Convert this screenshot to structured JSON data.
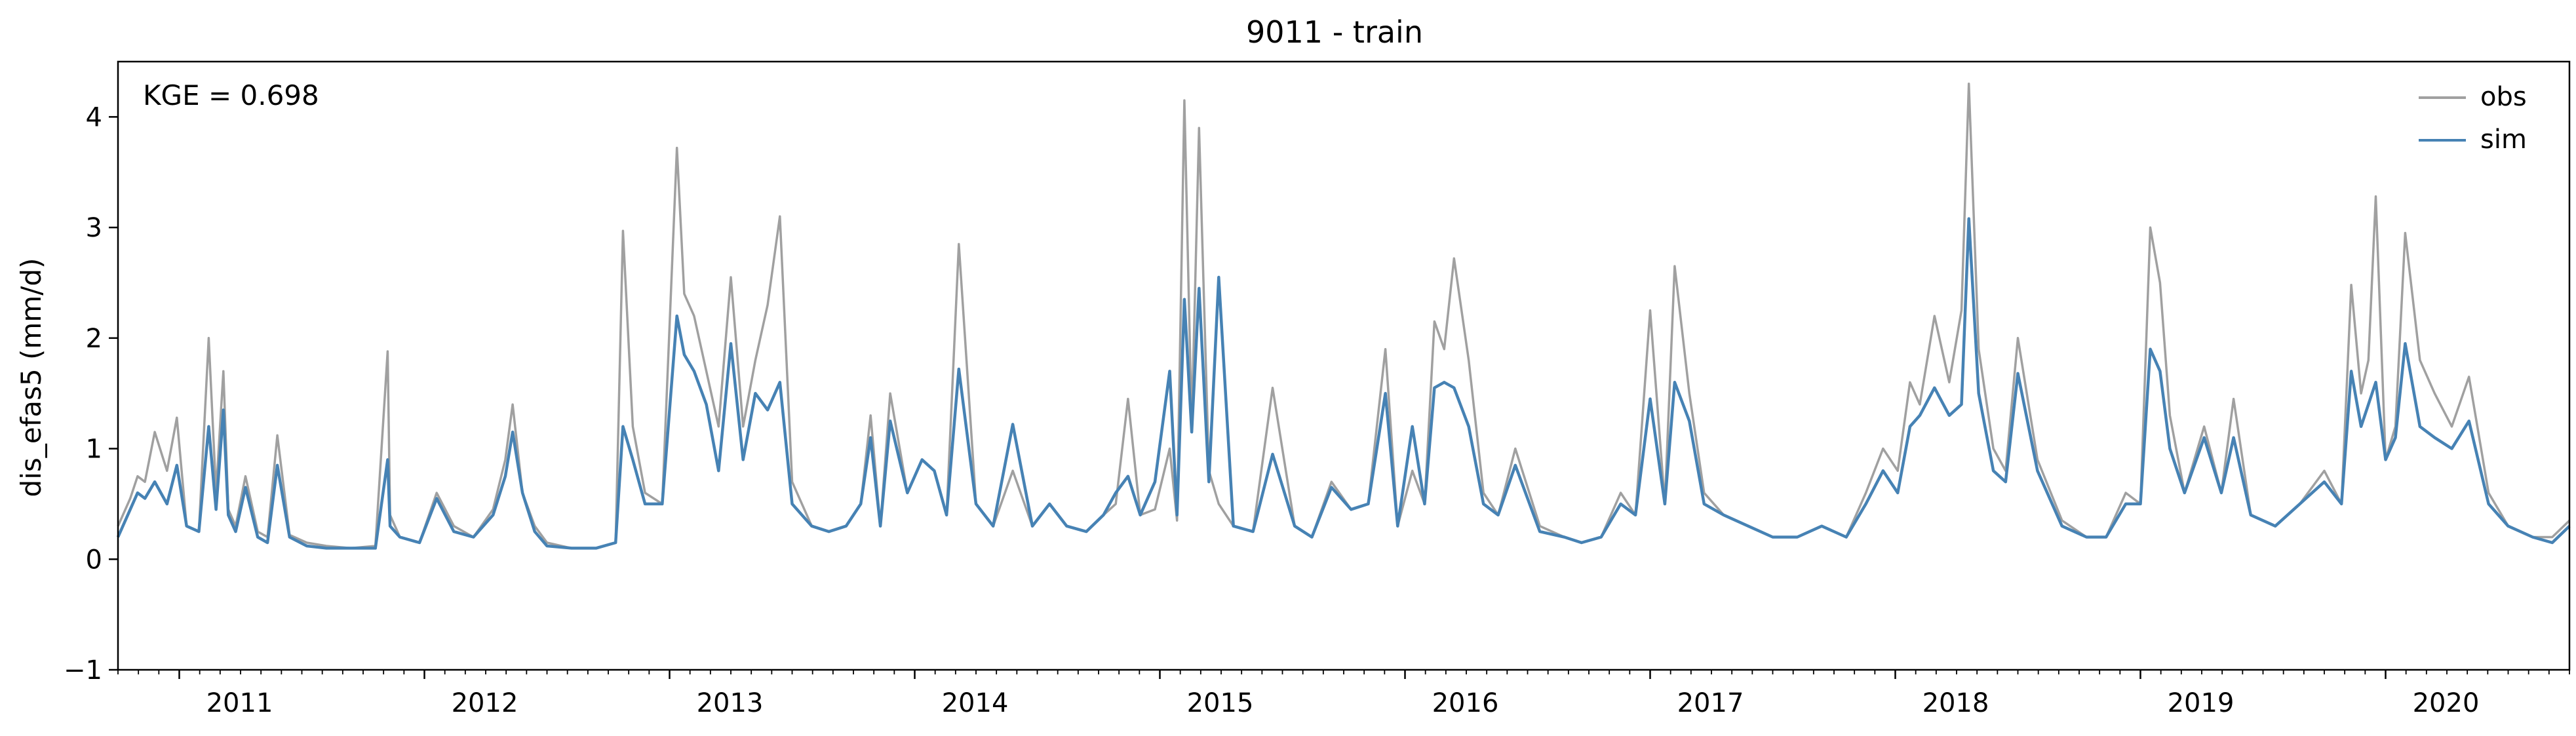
{
  "chart_data": {
    "type": "line",
    "title": "9011 - train",
    "xlabel": "",
    "ylabel": "dis_efas5 (mm/d)",
    "annotation": "KGE = 0.698",
    "xlim": [
      2010.75,
      2020.75
    ],
    "ylim": [
      -1,
      4.5
    ],
    "yticks": [
      -1,
      0,
      1,
      2,
      3,
      4
    ],
    "ytick_labels": [
      "−1",
      "0",
      "1",
      "2",
      "3",
      "4"
    ],
    "xticks": [
      2011,
      2012,
      2013,
      2014,
      2015,
      2016,
      2017,
      2018,
      2019,
      2020
    ],
    "xtick_labels": [
      "2011",
      "2012",
      "2013",
      "2014",
      "2015",
      "2016",
      "2017",
      "2018",
      "2019",
      "2020"
    ],
    "legend_position": "top-right",
    "grid": false,
    "series": [
      {
        "name": "obs",
        "color": "#a0a0a0",
        "x": [
          2010.75,
          2010.8,
          2010.83,
          2010.86,
          2010.9,
          2010.95,
          2010.99,
          2011.03,
          2011.08,
          2011.12,
          2011.15,
          2011.18,
          2011.2,
          2011.23,
          2011.27,
          2011.32,
          2011.36,
          2011.4,
          2011.45,
          2011.52,
          2011.6,
          2011.7,
          2011.8,
          2011.85,
          2011.86,
          2011.9,
          2011.98,
          2012.05,
          2012.12,
          2012.2,
          2012.28,
          2012.33,
          2012.36,
          2012.4,
          2012.45,
          2012.5,
          2012.6,
          2012.7,
          2012.78,
          2012.81,
          2012.85,
          2012.9,
          2012.97,
          2013.03,
          2013.06,
          2013.1,
          2013.15,
          2013.2,
          2013.25,
          2013.3,
          2013.35,
          2013.4,
          2013.45,
          2013.5,
          2013.58,
          2013.65,
          2013.72,
          2013.78,
          2013.82,
          2013.86,
          2013.9,
          2013.97,
          2014.03,
          2014.08,
          2014.13,
          2014.18,
          2014.25,
          2014.32,
          2014.4,
          2014.48,
          2014.55,
          2014.62,
          2014.7,
          2014.77,
          2014.82,
          2014.87,
          2014.92,
          2014.98,
          2015.04,
          2015.07,
          2015.1,
          2015.13,
          2015.16,
          2015.2,
          2015.24,
          2015.3,
          2015.38,
          2015.46,
          2015.55,
          2015.62,
          2015.7,
          2015.78,
          2015.85,
          2015.92,
          2015.97,
          2016.03,
          2016.08,
          2016.12,
          2016.16,
          2016.2,
          2016.26,
          2016.32,
          2016.38,
          2016.45,
          2016.55,
          2016.65,
          2016.72,
          2016.8,
          2016.88,
          2016.94,
          2017.0,
          2017.06,
          2017.1,
          2017.16,
          2017.22,
          2017.3,
          2017.4,
          2017.5,
          2017.6,
          2017.7,
          2017.8,
          2017.88,
          2017.95,
          2018.01,
          2018.06,
          2018.1,
          2018.16,
          2018.22,
          2018.27,
          2018.3,
          2018.34,
          2018.4,
          2018.45,
          2018.5,
          2018.58,
          2018.68,
          2018.78,
          2018.86,
          2018.94,
          2019.0,
          2019.04,
          2019.08,
          2019.12,
          2019.18,
          2019.26,
          2019.33,
          2019.38,
          2019.45,
          2019.55,
          2019.65,
          2019.75,
          2019.82,
          2019.86,
          2019.9,
          2019.93,
          2019.96,
          2020.0,
          2020.04,
          2020.08,
          2020.14,
          2020.2,
          2020.27,
          2020.34,
          2020.42,
          2020.5,
          2020.6,
          2020.68,
          2020.75
        ],
        "y": [
          0.3,
          0.55,
          0.75,
          0.7,
          1.15,
          0.8,
          1.28,
          0.3,
          0.25,
          2.0,
          0.6,
          1.7,
          0.45,
          0.3,
          0.75,
          0.25,
          0.2,
          1.12,
          0.22,
          0.15,
          0.12,
          0.1,
          0.12,
          1.88,
          0.4,
          0.2,
          0.15,
          0.6,
          0.3,
          0.2,
          0.45,
          0.9,
          1.4,
          0.6,
          0.3,
          0.15,
          0.1,
          0.1,
          0.15,
          2.97,
          1.2,
          0.6,
          0.5,
          3.72,
          2.4,
          2.2,
          1.7,
          1.2,
          2.55,
          1.2,
          1.8,
          2.3,
          3.1,
          0.7,
          0.3,
          0.25,
          0.3,
          0.5,
          1.3,
          0.3,
          1.5,
          0.6,
          0.9,
          0.8,
          0.4,
          2.85,
          0.5,
          0.3,
          0.8,
          0.3,
          0.5,
          0.3,
          0.25,
          0.4,
          0.5,
          1.45,
          0.4,
          0.45,
          1.0,
          0.35,
          4.15,
          1.2,
          3.9,
          0.8,
          0.5,
          0.3,
          0.25,
          1.55,
          0.3,
          0.2,
          0.7,
          0.45,
          0.5,
          1.9,
          0.3,
          0.8,
          0.5,
          2.15,
          1.9,
          2.72,
          1.8,
          0.6,
          0.4,
          1.0,
          0.3,
          0.2,
          0.15,
          0.2,
          0.6,
          0.4,
          2.25,
          0.5,
          2.65,
          1.5,
          0.6,
          0.4,
          0.3,
          0.2,
          0.2,
          0.3,
          0.2,
          0.6,
          1.0,
          0.8,
          1.6,
          1.4,
          2.2,
          1.6,
          2.25,
          4.3,
          1.9,
          1.0,
          0.8,
          2.0,
          0.9,
          0.35,
          0.2,
          0.2,
          0.6,
          0.5,
          3.0,
          2.5,
          1.3,
          0.6,
          1.2,
          0.6,
          1.45,
          0.4,
          0.3,
          0.5,
          0.8,
          0.5,
          2.48,
          1.5,
          1.8,
          3.28,
          0.9,
          1.2,
          2.95,
          1.8,
          1.5,
          1.2,
          1.65,
          0.6,
          0.3,
          0.2,
          0.2,
          0.35
        ]
      },
      {
        "name": "sim",
        "color": "#4682b4",
        "x": [
          2010.75,
          2010.8,
          2010.83,
          2010.86,
          2010.9,
          2010.95,
          2010.99,
          2011.03,
          2011.08,
          2011.12,
          2011.15,
          2011.18,
          2011.2,
          2011.23,
          2011.27,
          2011.32,
          2011.36,
          2011.4,
          2011.45,
          2011.52,
          2011.6,
          2011.7,
          2011.8,
          2011.85,
          2011.86,
          2011.9,
          2011.98,
          2012.05,
          2012.12,
          2012.2,
          2012.28,
          2012.33,
          2012.36,
          2012.4,
          2012.45,
          2012.5,
          2012.6,
          2012.7,
          2012.78,
          2012.81,
          2012.85,
          2012.9,
          2012.97,
          2013.03,
          2013.06,
          2013.1,
          2013.15,
          2013.2,
          2013.25,
          2013.3,
          2013.35,
          2013.4,
          2013.45,
          2013.5,
          2013.58,
          2013.65,
          2013.72,
          2013.78,
          2013.82,
          2013.86,
          2013.9,
          2013.97,
          2014.03,
          2014.08,
          2014.13,
          2014.18,
          2014.25,
          2014.32,
          2014.4,
          2014.48,
          2014.55,
          2014.62,
          2014.7,
          2014.77,
          2014.82,
          2014.87,
          2014.92,
          2014.98,
          2015.04,
          2015.07,
          2015.1,
          2015.13,
          2015.16,
          2015.2,
          2015.24,
          2015.3,
          2015.38,
          2015.46,
          2015.55,
          2015.62,
          2015.7,
          2015.78,
          2015.85,
          2015.92,
          2015.97,
          2016.03,
          2016.08,
          2016.12,
          2016.16,
          2016.2,
          2016.26,
          2016.32,
          2016.38,
          2016.45,
          2016.55,
          2016.65,
          2016.72,
          2016.8,
          2016.88,
          2016.94,
          2017.0,
          2017.06,
          2017.1,
          2017.16,
          2017.22,
          2017.3,
          2017.4,
          2017.5,
          2017.6,
          2017.7,
          2017.8,
          2017.88,
          2017.95,
          2018.01,
          2018.06,
          2018.1,
          2018.16,
          2018.22,
          2018.27,
          2018.3,
          2018.34,
          2018.4,
          2018.45,
          2018.5,
          2018.58,
          2018.68,
          2018.78,
          2018.86,
          2018.94,
          2019.0,
          2019.04,
          2019.08,
          2019.12,
          2019.18,
          2019.26,
          2019.33,
          2019.38,
          2019.45,
          2019.55,
          2019.65,
          2019.75,
          2019.82,
          2019.86,
          2019.9,
          2019.93,
          2019.96,
          2020.0,
          2020.04,
          2020.08,
          2020.14,
          2020.2,
          2020.27,
          2020.34,
          2020.42,
          2020.5,
          2020.6,
          2020.68,
          2020.75
        ],
        "y": [
          0.2,
          0.45,
          0.6,
          0.55,
          0.7,
          0.5,
          0.85,
          0.3,
          0.25,
          1.2,
          0.45,
          1.35,
          0.4,
          0.25,
          0.65,
          0.2,
          0.15,
          0.85,
          0.2,
          0.12,
          0.1,
          0.1,
          0.1,
          0.9,
          0.3,
          0.2,
          0.15,
          0.55,
          0.25,
          0.2,
          0.4,
          0.75,
          1.15,
          0.6,
          0.25,
          0.12,
          0.1,
          0.1,
          0.15,
          1.2,
          0.9,
          0.5,
          0.5,
          2.2,
          1.85,
          1.7,
          1.4,
          0.8,
          1.95,
          0.9,
          1.5,
          1.35,
          1.6,
          0.5,
          0.3,
          0.25,
          0.3,
          0.5,
          1.1,
          0.3,
          1.25,
          0.6,
          0.9,
          0.8,
          0.4,
          1.72,
          0.5,
          0.3,
          1.22,
          0.3,
          0.5,
          0.3,
          0.25,
          0.4,
          0.6,
          0.75,
          0.4,
          0.7,
          1.7,
          0.4,
          2.35,
          1.15,
          2.45,
          0.7,
          2.55,
          0.3,
          0.25,
          0.95,
          0.3,
          0.2,
          0.65,
          0.45,
          0.5,
          1.5,
          0.3,
          1.2,
          0.5,
          1.55,
          1.6,
          1.55,
          1.2,
          0.5,
          0.4,
          0.85,
          0.25,
          0.2,
          0.15,
          0.2,
          0.5,
          0.4,
          1.45,
          0.5,
          1.6,
          1.25,
          0.5,
          0.4,
          0.3,
          0.2,
          0.2,
          0.3,
          0.2,
          0.5,
          0.8,
          0.6,
          1.2,
          1.3,
          1.55,
          1.3,
          1.4,
          3.08,
          1.5,
          0.8,
          0.7,
          1.68,
          0.8,
          0.3,
          0.2,
          0.2,
          0.5,
          0.5,
          1.9,
          1.7,
          1.0,
          0.6,
          1.1,
          0.6,
          1.1,
          0.4,
          0.3,
          0.5,
          0.7,
          0.5,
          1.7,
          1.2,
          1.4,
          1.6,
          0.9,
          1.1,
          1.95,
          1.2,
          1.1,
          1.0,
          1.25,
          0.5,
          0.3,
          0.2,
          0.15,
          0.3
        ]
      }
    ]
  }
}
